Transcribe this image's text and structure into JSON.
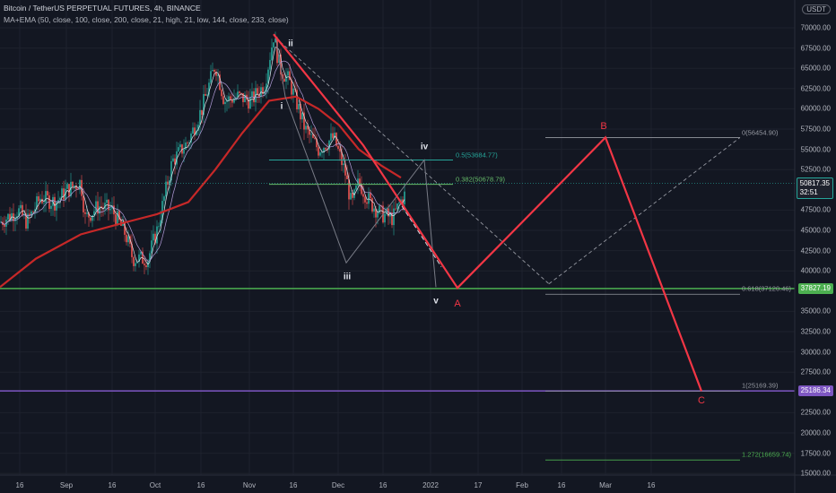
{
  "header": {
    "title": "Bitcoin / TetherUS PERPETUAL FUTURES, 4h, BINANCE",
    "indicator": "MA+EMA (50, close, 100, close, 200, close, 21, high, 21, low, 144, close, 233, close)"
  },
  "currency_badge": "USDT",
  "price_tags": {
    "current_price": "50817.35",
    "countdown": "32:51",
    "level_green": "37827.19",
    "level_purple": "25186.34"
  },
  "waves": {
    "ii": "ii",
    "i": "i",
    "iii": "iii",
    "iv": "iv",
    "v": "v",
    "A": "A",
    "B": "B",
    "C": "C"
  },
  "fib_labels": {
    "f05": "0.5(53684.77)",
    "f0382": "0.382(50678.79)",
    "f0": "0(56454.90)",
    "f0618": "0.618(37120.46)",
    "f1": "1(25169.39)",
    "f1272": "1.272(16659.74)"
  },
  "colors": {
    "background": "#131722",
    "candle_up": "#26a69a",
    "candle_down": "#ef5350",
    "wave_red": "#f23645",
    "level_green": "#4caf50",
    "level_purple": "#7e57c2",
    "fib_teal": "#26a69a"
  },
  "chart_data": {
    "type": "line",
    "title": "Bitcoin / TetherUS PERPETUAL FUTURES, 4h, BINANCE",
    "y_axis": {
      "range": [
        15000,
        72500
      ],
      "ticks": [
        "70000.00",
        "67500.00",
        "65000.00",
        "62500.00",
        "60000.00",
        "57500.00",
        "55000.00",
        "52500.00",
        "47500.00",
        "45000.00",
        "42500.00",
        "40000.00",
        "35000.00",
        "32500.00",
        "30000.00",
        "27500.00",
        "22500.00",
        "20000.00",
        "17500.00",
        "15000.00"
      ]
    },
    "x_axis": {
      "ticks": [
        "16",
        "Sep",
        "16",
        "Oct",
        "16",
        "Nov",
        "16",
        "Dec",
        "16",
        "2022",
        "17",
        "Feb",
        "16",
        "Mar",
        "16"
      ]
    },
    "series": [
      {
        "name": "Bitcoin / TetherUS PERPETUAL FUTURES",
        "values_approx": [
          [
            "Aug 16",
            46000
          ],
          [
            "Aug 25",
            48500
          ],
          [
            "Sep 6",
            51500
          ],
          [
            "Sep 7",
            46500
          ],
          [
            "Sep 16",
            47500
          ],
          [
            "Sep 21",
            41500
          ],
          [
            "Sep 28",
            41500
          ],
          [
            "Oct 6",
            54000
          ],
          [
            "Oct 15",
            60000
          ],
          [
            "Oct 20",
            65500
          ],
          [
            "Oct 28",
            60000
          ],
          [
            "Nov 2",
            62500
          ],
          [
            "Nov 10",
            69000
          ],
          [
            "Nov 16",
            61000
          ],
          [
            "Nov 26",
            54500
          ],
          [
            "Dec 4",
            48000
          ],
          [
            "Dec 7",
            51000
          ],
          [
            "Dec 14",
            47000
          ],
          [
            "Dec 23",
            50800
          ]
        ]
      }
    ],
    "levels": [
      37827.19,
      25186.34
    ],
    "fib_levels": [
      {
        "ratio": "0.5",
        "value": 53684.77
      },
      {
        "ratio": "0.382",
        "value": 50678.79
      },
      {
        "ratio": "0",
        "value": 56454.9
      },
      {
        "ratio": "0.618",
        "value": 37120.46
      },
      {
        "ratio": "1",
        "value": 25169.39
      },
      {
        "ratio": "1.272",
        "value": 16659.74
      }
    ],
    "projection_path": [
      {
        "label": "ii",
        "value": 69000
      },
      {
        "label": "A",
        "value": 37900
      },
      {
        "label": "B",
        "value": 56454.9
      },
      {
        "label": "C",
        "value": 25169.39
      }
    ],
    "impulse_path": [
      {
        "label": "ii",
        "value": 69000
      },
      {
        "label": "i",
        "value": 61500
      },
      {
        "label": "iii",
        "value": 41000
      },
      {
        "label": "iv",
        "value": 53684.77
      },
      {
        "label": "v",
        "value": 38000
      }
    ],
    "grid": true
  }
}
